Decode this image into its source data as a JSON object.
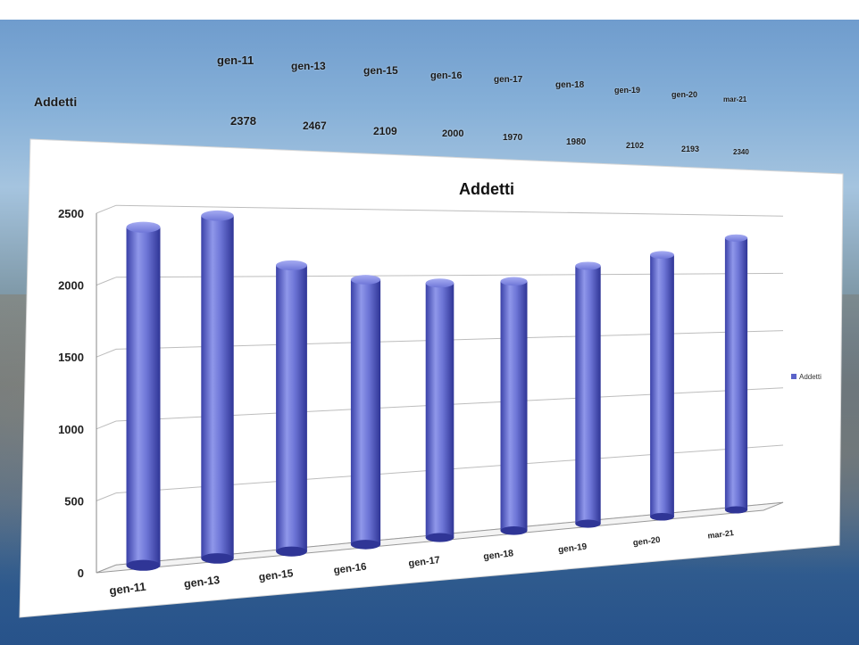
{
  "table": {
    "row_label": "Addetti",
    "categories": [
      "gen-11",
      "gen-13",
      "gen-15",
      "gen-16",
      "gen-17",
      "gen-18",
      "gen-19",
      "gen-20",
      "mar-21"
    ],
    "values": [
      "2378",
      "2467",
      "2109",
      "2000",
      "1970",
      "1980",
      "2102",
      "2193",
      "2340"
    ]
  },
  "chart_data": {
    "type": "bar",
    "style": "3d-cylinder",
    "title": "Addetti",
    "categories": [
      "gen-11",
      "gen-13",
      "gen-15",
      "gen-16",
      "gen-17",
      "gen-18",
      "gen-19",
      "gen-20",
      "mar-21"
    ],
    "series": [
      {
        "name": "Addetti",
        "values": [
          2378,
          2467,
          2109,
          2000,
          1970,
          1980,
          2102,
          2193,
          2340
        ]
      }
    ],
    "y_ticks": [
      "0",
      "500",
      "1000",
      "1500",
      "2000",
      "2500"
    ],
    "ylim": [
      0,
      2500
    ],
    "grid": true,
    "legend": "right",
    "colors": {
      "bar": "#5b63c9",
      "bar_dark": "#2f3596",
      "bar_light": "#8f97ea"
    }
  }
}
